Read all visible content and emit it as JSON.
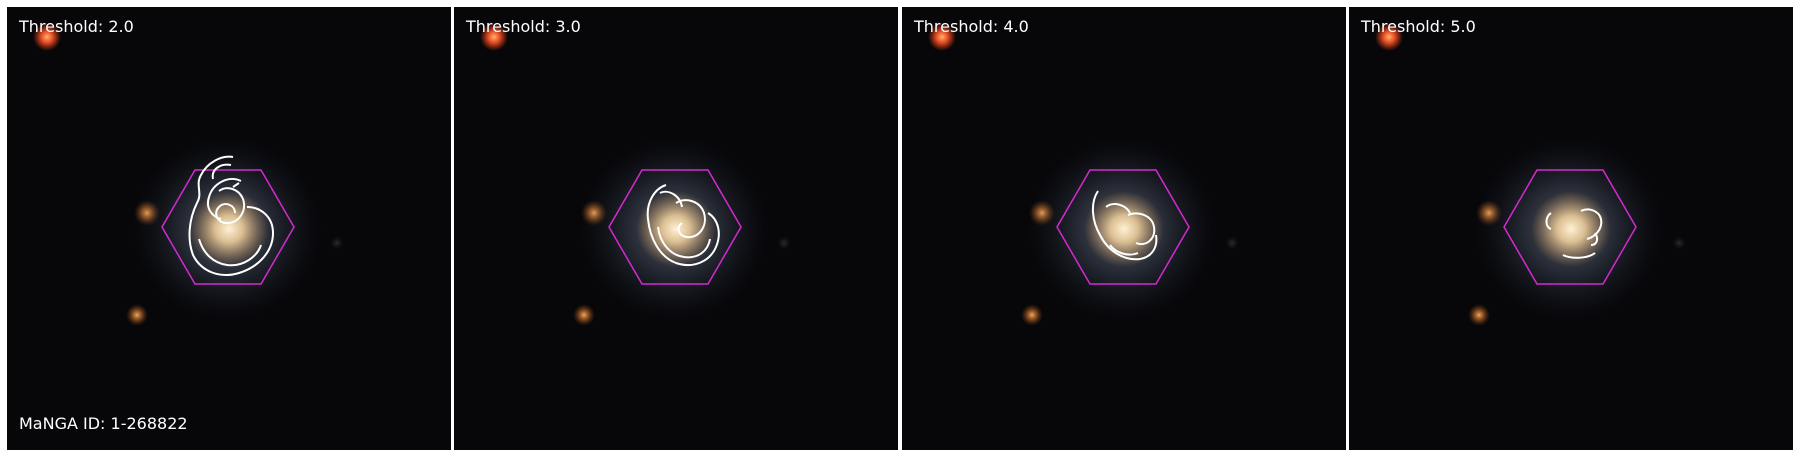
{
  "figure": {
    "manga_id_label": "MaNGA ID: 1-268822"
  },
  "panels": [
    {
      "title": "Threshold: 2.0"
    },
    {
      "title": "Threshold: 3.0"
    },
    {
      "title": "Threshold: 4.0"
    },
    {
      "title": "Threshold: 5.0"
    }
  ],
  "colors": {
    "background": "#ffffff",
    "sky": "#07070a",
    "galaxy_core": "#f3d3a0",
    "galaxy_halo": "#6e7c96",
    "bright_star": "#ff5a2a",
    "hexagon": "#d42ad0",
    "contour": "#ffffff",
    "label_text": "#ffffff"
  },
  "icons": {
    "hexagon": "ifu-footprint-hexagon",
    "contours": "spiral-arm-contours"
  }
}
